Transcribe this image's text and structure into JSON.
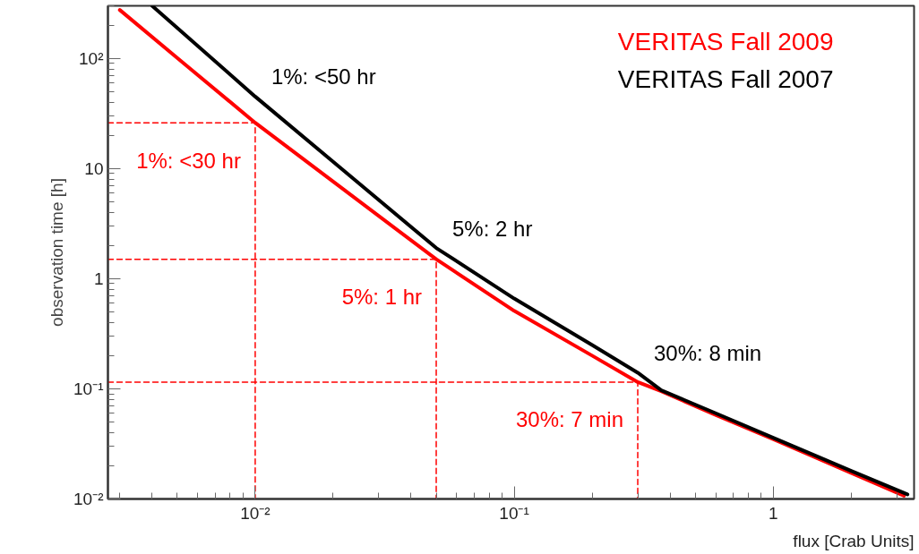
{
  "chart_data": {
    "type": "line",
    "xlabel": "flux [Crab Units]",
    "ylabel": "observation time [h]",
    "log": "xy",
    "grid": false,
    "legend": "top right",
    "line_style": "solid",
    "marker": "none",
    "xlim": [
      0.0027,
      3.5
    ],
    "ylim": [
      0.01,
      300
    ],
    "xticks": [
      {
        "value": 0.01,
        "label": "10⁻²"
      },
      {
        "value": 0.1,
        "label": "10⁻¹"
      },
      1
    ],
    "yticks": [
      {
        "value": 0.01,
        "label": "10⁻²"
      },
      {
        "value": 0.1,
        "label": "10⁻¹"
      },
      1,
      10,
      {
        "value": 100,
        "label": "10²"
      }
    ],
    "series": [
      {
        "name": "VERITAS Fall 2009",
        "color": "#ff0000",
        "x": [
          0.003,
          0.005,
          0.01,
          0.02,
          0.05,
          0.1,
          0.2,
          0.3,
          0.37,
          0.6,
          1,
          2,
          3.2
        ],
        "values": [
          275,
          101,
          26,
          7.6,
          1.5,
          0.51,
          0.2,
          0.115,
          0.095,
          0.058,
          0.035,
          0.0172,
          0.0107
        ]
      },
      {
        "name": "VERITAS Fall 2007",
        "color": "#000000",
        "x": [
          0.004,
          0.01,
          0.02,
          0.05,
          0.1,
          0.2,
          0.3,
          0.37,
          0.6,
          1,
          2,
          3.3
        ],
        "values": [
          300,
          45,
          11.5,
          1.9,
          0.66,
          0.25,
          0.14,
          0.097,
          0.06,
          0.036,
          0.018,
          0.011
        ]
      },
      {
        "color": "#ff0000",
        "line_style": "dashed",
        "x": [
          0.0027,
          0.01,
          0.01
        ],
        "values": [
          26,
          26,
          0.01
        ]
      },
      {
        "color": "#ff0000",
        "line_style": "dashed",
        "x": [
          0.0027,
          0.05,
          0.05
        ],
        "values": [
          1.5,
          1.5,
          0.01
        ]
      },
      {
        "color": "#ff0000",
        "line_style": "dashed",
        "x": [
          0.0027,
          0.3,
          0.3
        ],
        "values": [
          0.115,
          0.115,
          0.01
        ]
      }
    ],
    "annotations": [
      {
        "text": "1%: <50 hr",
        "x": 0.01,
        "y": 45
      },
      {
        "text": "1%: <30 hr",
        "x": 0.01,
        "y": 26
      },
      {
        "text": "5%: 2 hr",
        "x": 0.05,
        "y": 1.9
      },
      {
        "text": "5%: 1 hr",
        "x": 0.05,
        "y": 1.5
      },
      {
        "text": "30%: 8 min",
        "x": 0.3,
        "y": 0.14
      },
      {
        "text": "30%: 7 min",
        "x": 0.3,
        "y": 0.115
      }
    ]
  }
}
